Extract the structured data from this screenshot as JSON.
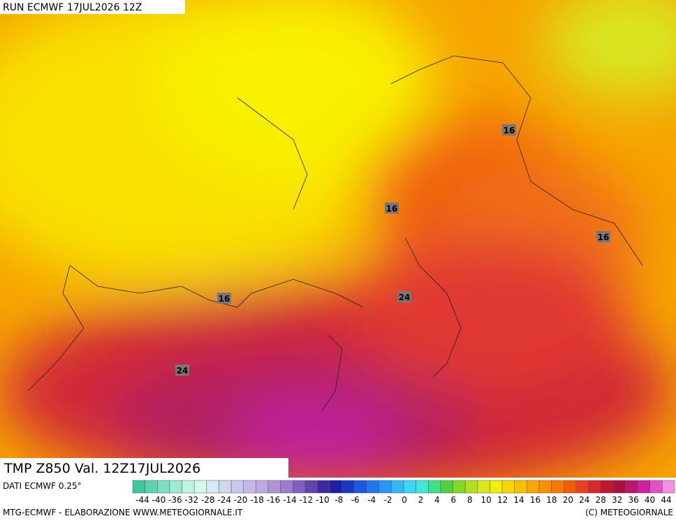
{
  "header": {
    "run": "RUN ECMWF 17JUL2026 12Z"
  },
  "map": {
    "contour_labels": [
      "16",
      "16",
      "16",
      "16",
      "24",
      "24"
    ]
  },
  "footer": {
    "product": "TMP Z850 Val. 12Z17JUL2026",
    "source": "DATI ECMWF 0.25°",
    "credit": "MTG-ECMWF - ELABORAZIONE WWW.METEOGIORNALE.IT",
    "copyright": "(C) METEOGIORNALE"
  },
  "legend": {
    "labels": [
      "-44",
      "-40",
      "-36",
      "-32",
      "-28",
      "-24",
      "-20",
      "-18",
      "-16",
      "-14",
      "-12",
      "-10",
      "-8",
      "-6",
      "-4",
      "-2",
      "0",
      "2",
      "4",
      "6",
      "8",
      "10",
      "12",
      "14",
      "16",
      "18",
      "20",
      "24",
      "28",
      "32",
      "36",
      "40",
      "44"
    ],
    "colors": [
      "#3cc8a0",
      "#5cd4b0",
      "#7ce0c4",
      "#9cecd4",
      "#bcf4e4",
      "#d4f8ee",
      "#d8e8f4",
      "#d0d8f0",
      "#c8c8ec",
      "#c8b8e8",
      "#c0a8e0",
      "#b094d8",
      "#9c7ccc",
      "#8060c0",
      "#6044b0",
      "#4028a0",
      "#1c1ca8",
      "#1838c8",
      "#1c58e0",
      "#2078f0",
      "#2898f8",
      "#30b8f8",
      "#38d8f8",
      "#40e8d8",
      "#40e088",
      "#50d040",
      "#80d828",
      "#b0e020",
      "#d8e818",
      "#f0f000",
      "#f8d800",
      "#f8c000",
      "#f8a800",
      "#f89000",
      "#f87800",
      "#f06000",
      "#e84020",
      "#d82828",
      "#c01830",
      "#a81040",
      "#b81870",
      "#d020a0",
      "#e050c8",
      "#f090e0"
    ]
  }
}
